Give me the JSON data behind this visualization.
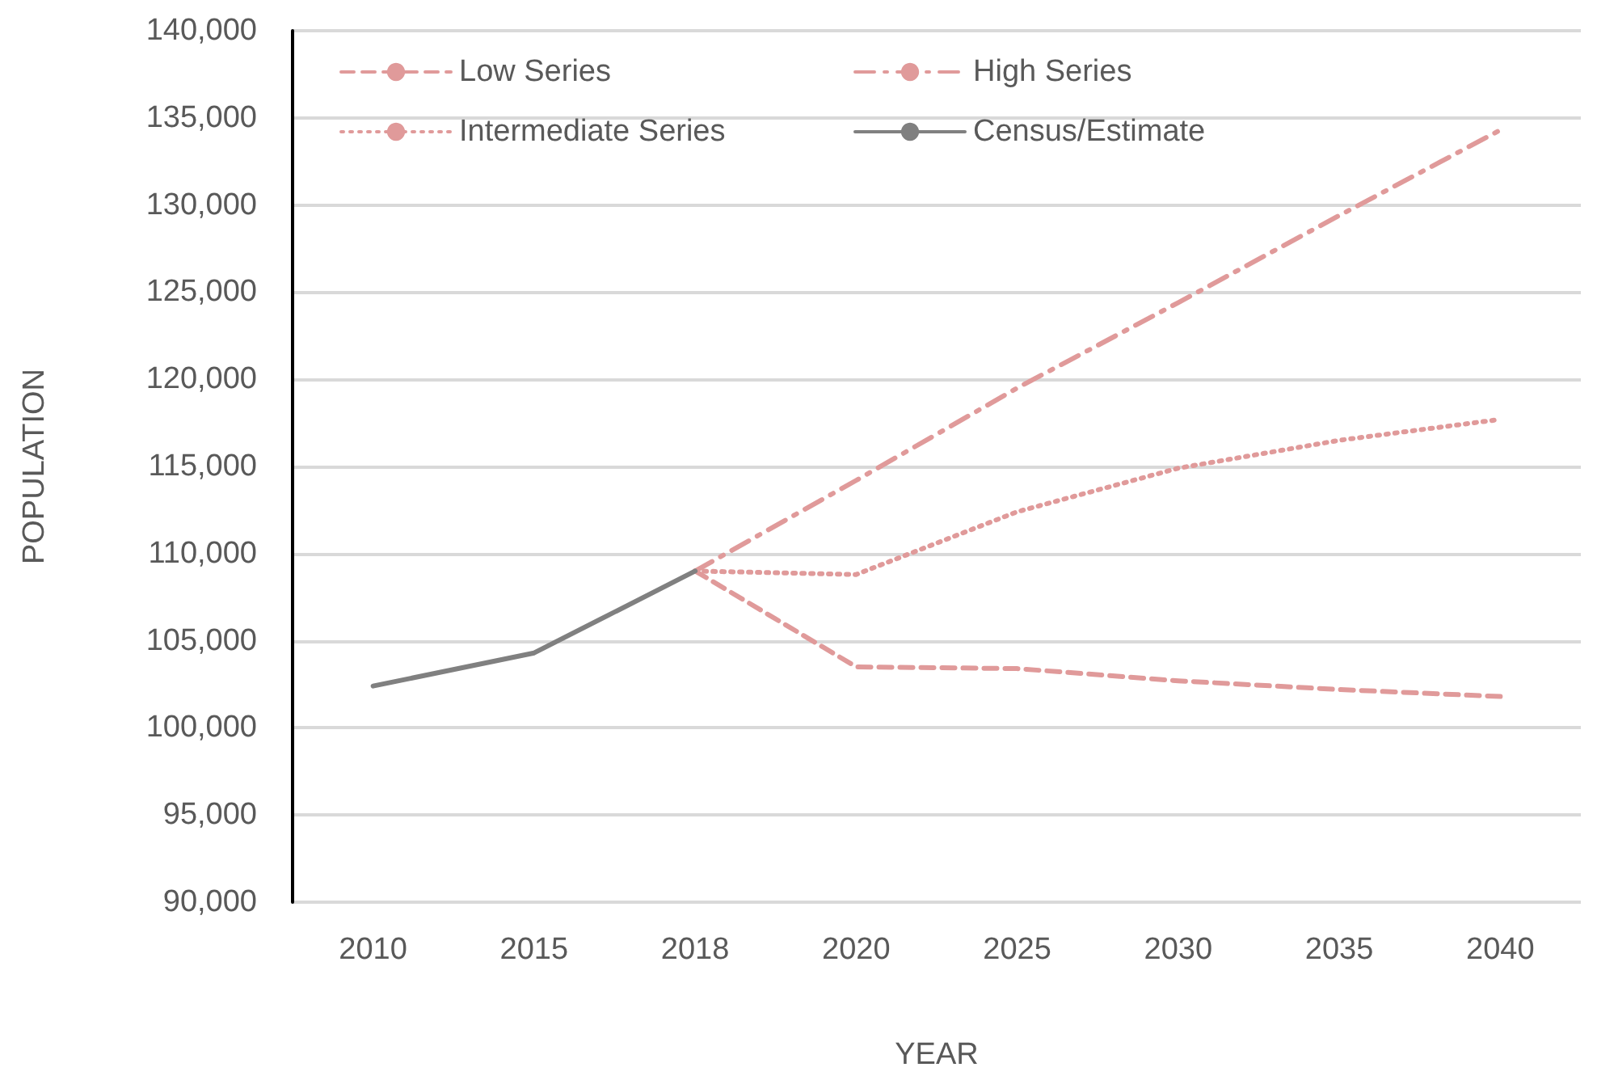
{
  "chart_data": {
    "type": "line",
    "xlabel": "YEAR",
    "ylabel": "POPULATION",
    "categories": [
      "2010",
      "2015",
      "2018",
      "2020",
      "2025",
      "2030",
      "2035",
      "2040"
    ],
    "series": [
      {
        "name": "Low Series",
        "color": "#e09a9a",
        "line_style": "dashed",
        "values": [
          null,
          null,
          109000,
          103500,
          103400,
          102700,
          102200,
          101800
        ]
      },
      {
        "name": "High Series",
        "color": "#e09a9a",
        "line_style": "dashdot",
        "values": [
          null,
          null,
          109000,
          114200,
          119500,
          124400,
          129400,
          134300
        ]
      },
      {
        "name": "Intermediate Series",
        "color": "#e09a9a",
        "line_style": "dotted",
        "values": [
          null,
          null,
          109000,
          108800,
          112400,
          114900,
          116500,
          117700
        ]
      },
      {
        "name": "Census/Estimate",
        "color": "#808080",
        "line_style": "solid",
        "values": [
          102400,
          104300,
          109000,
          null,
          null,
          null,
          null,
          null
        ]
      }
    ],
    "ylim": [
      90000,
      140000
    ],
    "yticks": [
      {
        "value": 90000,
        "label": "90,000"
      },
      {
        "value": 95000,
        "label": "95,000"
      },
      {
        "value": 100000,
        "label": "100,000"
      },
      {
        "value": 105000,
        "label": "105,000"
      },
      {
        "value": 110000,
        "label": "110,000"
      },
      {
        "value": 115000,
        "label": "115,000"
      },
      {
        "value": 120000,
        "label": "120,000"
      },
      {
        "value": 125000,
        "label": "125,000"
      },
      {
        "value": 130000,
        "label": "130,000"
      },
      {
        "value": 135000,
        "label": "135,000"
      },
      {
        "value": 140000,
        "label": "140,000"
      }
    ],
    "grid": "y",
    "legend": "top left",
    "marker": "none"
  }
}
